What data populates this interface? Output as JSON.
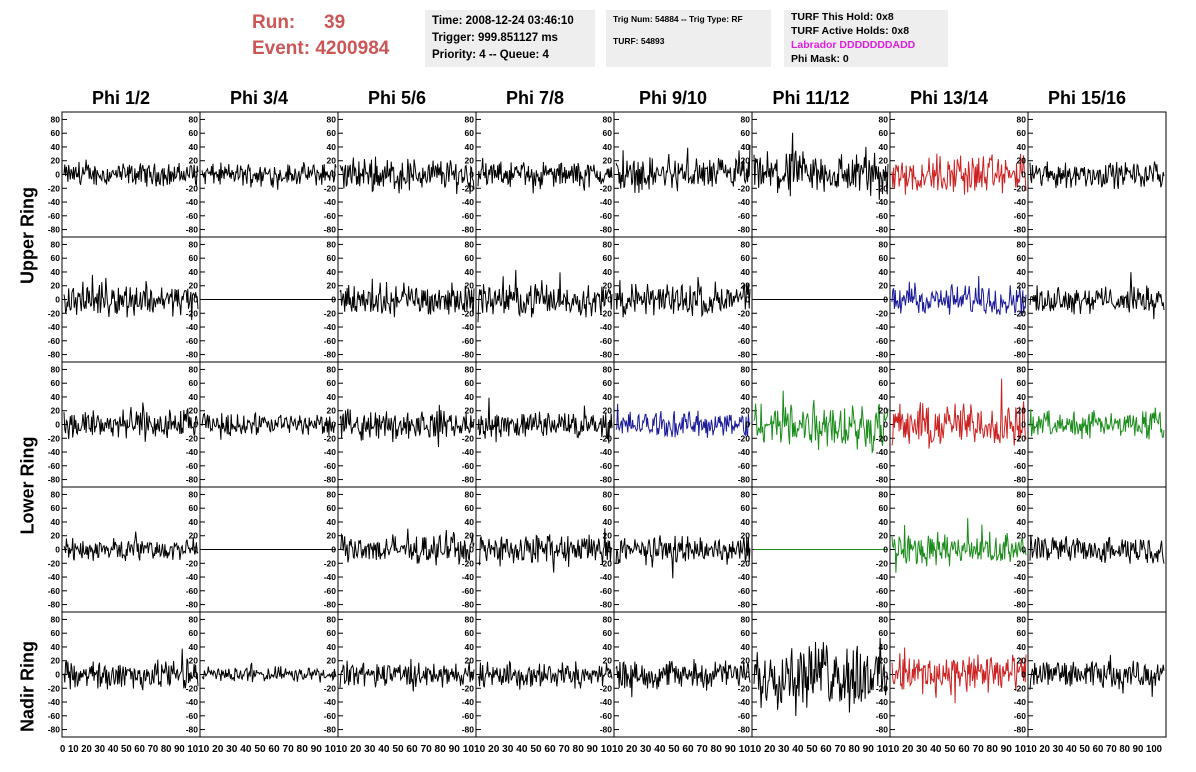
{
  "header": {
    "run_label": "Run:",
    "run_value": "39",
    "event_label": "Event:",
    "event_value": "4200984"
  },
  "time_box": {
    "time": "Time: 2008-12-24 03:46:10",
    "trigger": "Trigger: 999.851127 ms",
    "priority": "Priority: 4 -- Queue: 4"
  },
  "trig_box": {
    "trig": "Trig Num: 54884 -- Trig Type: RF",
    "turf": "TURF: 54893"
  },
  "turf_box": {
    "hold": "TURF This Hold: 0x8",
    "active": "TURF Active Holds: 0x8",
    "labrador": "Labrador DDDDDDDADD",
    "phi_mask": "Phi Mask: 0"
  },
  "colors": {
    "label_red": "#cc5555",
    "info_bg": "#eeeeee",
    "labrador_magenta": "#e020e0",
    "trace_black": "#000000",
    "trace_red": "#cc2222",
    "trace_blue": "#1a1a99",
    "trace_green": "#1a8c1a"
  },
  "columns": [
    "Phi 1/2",
    "Phi 3/4",
    "Phi 5/6",
    "Phi 7/8",
    "Phi 9/10",
    "Phi 11/12",
    "Phi 13/14",
    "Phi 15/16"
  ],
  "rows": [
    {
      "label": "Upper Ring",
      "panels": 2
    },
    {
      "label": "Lower Ring",
      "panels": 2
    },
    {
      "label": "Nadir Ring",
      "panels": 1
    }
  ],
  "chart_data": {
    "type": "line",
    "xlim": [
      0,
      100
    ],
    "ylim": [
      -85,
      85
    ],
    "y_ticks": [
      "80",
      "60",
      "40",
      "20",
      "0",
      "-20",
      "-40",
      "-60",
      "-80"
    ],
    "x_ticks": [
      "0",
      "10",
      "20",
      "30",
      "40",
      "50",
      "60",
      "70",
      "80",
      "90",
      "100"
    ],
    "x_tick_strip_first": "0 10 20 30 40 50 60 70 80 90 10",
    "x_tick_strip": "10 20 30 40 50 60 70 80 90 10",
    "x_tick_strip_last": "10 20 30 40 50 60 70 80 90 100",
    "traces": [
      [
        {
          "c": "black",
          "a": 12
        },
        {
          "c": "black",
          "a": 12
        },
        {
          "c": "black",
          "a": 18
        },
        {
          "c": "black",
          "a": 13
        },
        {
          "c": "black",
          "a": 18
        },
        {
          "c": "black",
          "a": 24
        },
        {
          "c": "red",
          "a": 22
        },
        {
          "c": "black",
          "a": 14
        }
      ],
      [
        {
          "c": "black",
          "a": 17
        },
        {
          "c": "black",
          "a": 0
        },
        {
          "c": "black",
          "a": 17
        },
        {
          "c": "black",
          "a": 17
        },
        {
          "c": "black",
          "a": 18
        },
        {
          "c": "black",
          "a": 0
        },
        {
          "c": "blue",
          "a": 16
        },
        {
          "c": "black",
          "a": 14
        }
      ],
      [
        {
          "c": "black",
          "a": 17
        },
        {
          "c": "black",
          "a": 12
        },
        {
          "c": "black",
          "a": 15
        },
        {
          "c": "black",
          "a": 14
        },
        {
          "c": "blue",
          "a": 14
        },
        {
          "c": "green",
          "a": 26
        },
        {
          "c": "red",
          "a": 24
        },
        {
          "c": "green",
          "a": 14
        }
      ],
      [
        {
          "c": "black",
          "a": 12
        },
        {
          "c": "black",
          "a": 0
        },
        {
          "c": "black",
          "a": 15
        },
        {
          "c": "black",
          "a": 17
        },
        {
          "c": "black",
          "a": 15
        },
        {
          "c": "green",
          "a": 0
        },
        {
          "c": "green",
          "a": 17
        },
        {
          "c": "black",
          "a": 14
        }
      ],
      [
        {
          "c": "black",
          "a": 16
        },
        {
          "c": "black",
          "a": 8
        },
        {
          "c": "black",
          "a": 13
        },
        {
          "c": "black",
          "a": 14
        },
        {
          "c": "black",
          "a": 15
        },
        {
          "c": "black",
          "a": 35
        },
        {
          "c": "red",
          "a": 22
        },
        {
          "c": "black",
          "a": 14
        }
      ]
    ]
  }
}
